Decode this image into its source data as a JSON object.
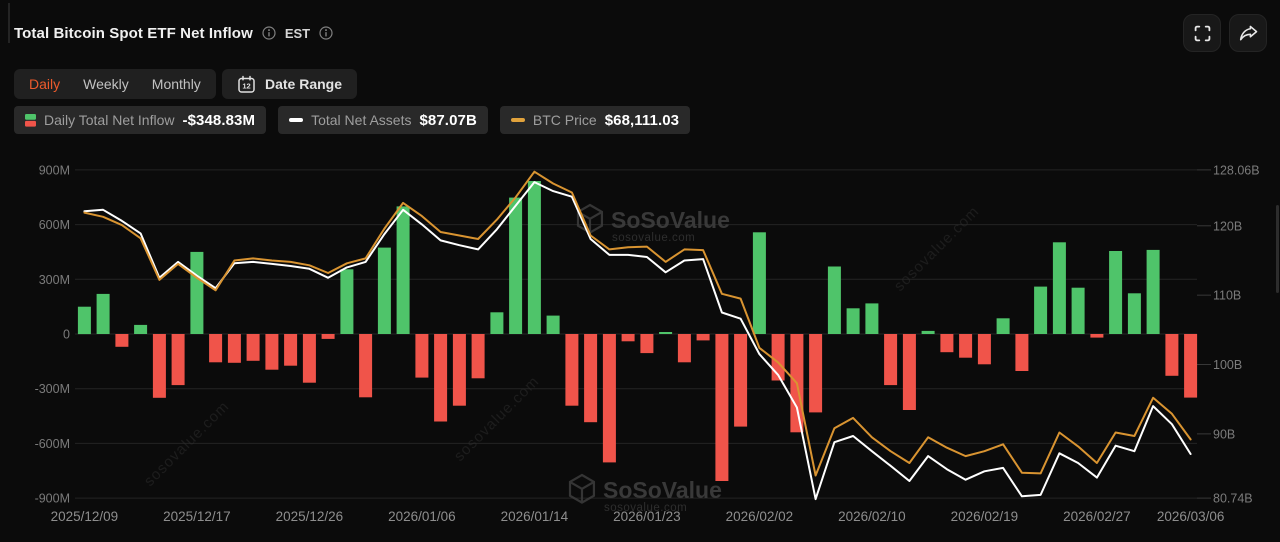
{
  "header": {
    "title": "Total Bitcoin Spot ETF Net Inflow",
    "timezone_label": "EST"
  },
  "controls": {
    "tabs": [
      "Daily",
      "Weekly",
      "Monthly"
    ],
    "active_tab": "Daily",
    "date_range_label": "Date Range",
    "calendar_day": "12"
  },
  "legend": [
    {
      "id": "inflow",
      "label": "Daily Total Net Inflow",
      "value": "-$348.83M"
    },
    {
      "id": "assets",
      "label": "Total Net Assets",
      "value": "$87.07B"
    },
    {
      "id": "price",
      "label": "BTC Price",
      "value": "$68,111.03"
    }
  ],
  "watermark": {
    "name": "SoSoValue",
    "domain": "sosovalue.com"
  },
  "colors": {
    "positive": "#4fc46a",
    "negative": "#f0544a",
    "assets_line": "#ffffff",
    "btc_line": "#d99431",
    "accent_tab": "#eb5a2c"
  },
  "chart_data": {
    "type": "bar",
    "subtype": "combo-bar-with-two-lines",
    "title": "Total Bitcoin Spot ETF Net Inflow",
    "left_axis": {
      "unit": "USD (M = millions)",
      "range": [
        -900,
        900
      ],
      "tick_values": [
        900,
        600,
        300,
        0,
        -300,
        -600,
        -900
      ],
      "tick_labels": [
        "900M",
        "600M",
        "300M",
        "0",
        "-300M",
        "-600M",
        "-900M"
      ]
    },
    "right_axis": {
      "unit": "USD (B = billions)",
      "range": [
        80.74,
        128.06
      ],
      "tick_values": [
        128.06,
        120,
        110,
        100,
        90,
        80.74
      ],
      "tick_labels": [
        "128.06B",
        "120B",
        "110B",
        "100B",
        "90B",
        "80.74B"
      ]
    },
    "x_axis": {
      "tick_indices": [
        0,
        6,
        12,
        18,
        24,
        30,
        36,
        42,
        48,
        54,
        59
      ],
      "tick_labels": [
        "2025/12/09",
        "2025/12/17",
        "2025/12/26",
        "2026/01/06",
        "2026/01/14",
        "2026/01/23",
        "2026/02/02",
        "2026/02/10",
        "2026/02/19",
        "2026/02/27",
        "2026/03/06"
      ]
    },
    "grid": true,
    "legend_position": "top-left",
    "series": {
      "bars": {
        "name": "Daily Total Net Inflow",
        "unit": "USD millions",
        "latest_display": "-$348.83M",
        "values": [
          150,
          220,
          -70,
          50,
          -350,
          -280,
          450,
          -155,
          -158,
          -147,
          -196,
          -174,
          -267,
          -27,
          355,
          -347,
          474,
          700,
          -239,
          -480,
          -393,
          -243,
          119,
          748,
          839,
          101,
          -393,
          -484,
          -704,
          -40,
          -105,
          10,
          -155,
          -35,
          -806,
          -508,
          558,
          -255,
          -539,
          -430,
          370,
          141,
          168,
          -280,
          -417,
          17,
          -100,
          -130,
          -166,
          86,
          -203,
          260,
          503,
          254,
          -20,
          455,
          223,
          461,
          -229,
          -349
        ]
      },
      "net_assets_line": {
        "name": "Total Net Assets",
        "unit": "USD billions (right axis)",
        "latest_display": "$87.07B",
        "values": [
          122.1,
          122.3,
          120.7,
          118.9,
          112.5,
          114.8,
          112.8,
          111.0,
          114.6,
          114.8,
          114.5,
          114.2,
          113.8,
          112.5,
          114.0,
          114.8,
          118.8,
          122.3,
          120.2,
          117.9,
          117.2,
          116.6,
          119.5,
          122.9,
          126.3,
          125.0,
          124.2,
          118.1,
          115.8,
          115.8,
          115.5,
          113.3,
          115.0,
          115.2,
          107.5,
          106.6,
          101.5,
          98.5,
          93.8,
          80.6,
          88.8,
          89.7,
          87.5,
          85.4,
          83.2,
          86.8,
          84.9,
          83.4,
          84.6,
          85.1,
          81.0,
          81.2,
          87.2,
          85.8,
          83.7,
          88.3,
          87.5,
          94.0,
          91.4,
          87.1
        ]
      },
      "btc_price_line": {
        "name": "BTC Price",
        "unit": "plotted on right-axis scale",
        "latest_display": "$68,111.03",
        "values": [
          121.9,
          121.3,
          120.1,
          118.2,
          112.2,
          114.5,
          112.5,
          110.7,
          115.0,
          115.3,
          115.0,
          114.8,
          114.3,
          113.2,
          114.6,
          115.3,
          119.6,
          123.3,
          121.4,
          119.1,
          118.6,
          118.1,
          120.9,
          124.1,
          127.8,
          126.1,
          124.8,
          118.6,
          116.6,
          116.9,
          117.0,
          114.8,
          116.6,
          116.5,
          110.2,
          109.5,
          102.4,
          100.3,
          97.3,
          84.0,
          90.8,
          92.3,
          89.5,
          87.5,
          85.8,
          89.5,
          88.0,
          86.8,
          87.5,
          88.5,
          84.4,
          84.3,
          90.2,
          88.2,
          85.8,
          90.2,
          89.7,
          95.2,
          92.9,
          89.2
        ]
      }
    }
  }
}
